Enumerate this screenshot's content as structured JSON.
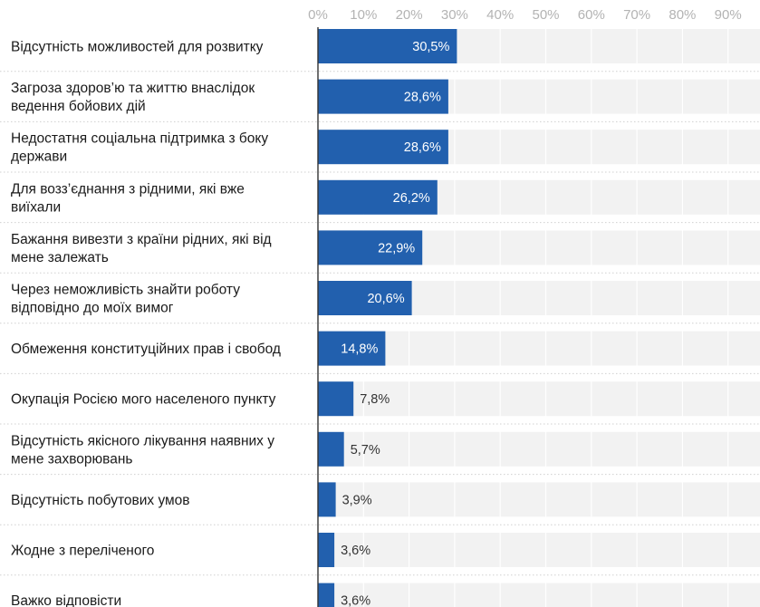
{
  "chart_data": {
    "type": "bar",
    "orientation": "horizontal",
    "xlim": [
      0,
      100
    ],
    "x_ticks": [
      "0%",
      "10%",
      "20%",
      "30%",
      "40%",
      "50%",
      "60%",
      "70%",
      "80%",
      "90%"
    ],
    "x_tick_values": [
      0,
      10,
      20,
      30,
      40,
      50,
      60,
      70,
      80,
      90
    ],
    "grid": true,
    "categories": [
      [
        "Відсутність можливостей для розвитку"
      ],
      [
        "Загроза здоров’ю та життю внаслідок",
        "ведення бойових дій"
      ],
      [
        "Недостатня соціальна підтримка з боку",
        "держави"
      ],
      [
        "Для возз’єднання з рідними, які вже",
        "виїхали"
      ],
      [
        "Бажання вивезти з країни рідних, які від",
        "мене залежать"
      ],
      [
        "Через неможливість знайти роботу",
        "відповідно до моїх вимог"
      ],
      [
        "Обмеження конституційних прав і свобод"
      ],
      [
        "Окупація Росією мого населеного пункту"
      ],
      [
        "Відсутність якісного лікування наявних у",
        "мене захворювань"
      ],
      [
        "Відсутність побутових умов"
      ],
      [
        "Жодне з переліченого"
      ],
      [
        "Важко відповісти"
      ]
    ],
    "values": [
      30.5,
      28.6,
      28.6,
      26.2,
      22.9,
      20.6,
      14.8,
      7.8,
      5.7,
      3.9,
      3.6,
      3.6
    ],
    "value_labels": [
      "30,5%",
      "28,6%",
      "28,6%",
      "26,2%",
      "22,9%",
      "20,6%",
      "14,8%",
      "7,8%",
      "5,7%",
      "3,9%",
      "3,6%",
      "3,6%"
    ],
    "colors": {
      "bar": "#2260ae",
      "track": "#f2f2f2",
      "label_inside": "#ffffff",
      "label_outside": "#333333",
      "tick": "#b3b3b3",
      "grid": "#ffffff",
      "separator": "#d0d0d0",
      "axis": "#333333"
    }
  }
}
